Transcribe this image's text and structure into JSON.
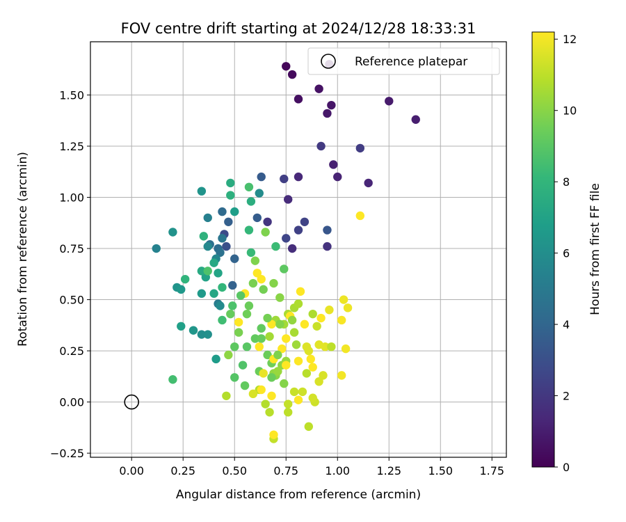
{
  "chart_data": {
    "type": "scatter",
    "title": "FOV centre drift starting at 2024/12/28 18:33:31",
    "xlabel": "Angular distance from reference (arcmin)",
    "ylabel": "Rotation from reference (arcmin)",
    "xlim": [
      -0.2,
      1.82
    ],
    "ylim": [
      -0.27,
      1.76
    ],
    "x_ticks": [
      0.0,
      0.25,
      0.5,
      0.75,
      1.0,
      1.25,
      1.5,
      1.75
    ],
    "x_tick_labels": [
      "0.00",
      "0.25",
      "0.50",
      "0.75",
      "1.00",
      "1.25",
      "1.50",
      "1.75"
    ],
    "y_ticks": [
      -0.25,
      0.0,
      0.25,
      0.5,
      0.75,
      1.0,
      1.25,
      1.5
    ],
    "y_tick_labels": [
      "−0.25",
      "0.00",
      "0.25",
      "0.50",
      "0.75",
      "1.00",
      "1.25",
      "1.50"
    ],
    "grid": true,
    "legend": {
      "position": "top-right",
      "entries": [
        "Reference platepar"
      ]
    },
    "reference_point": {
      "name": "Reference platepar",
      "x": 0.0,
      "y": 0.0
    },
    "colorbar": {
      "label": "Hours from first FF file",
      "colormap": "viridis",
      "range": [
        0,
        12.2
      ],
      "ticks": [
        0,
        2,
        4,
        6,
        8,
        10,
        12
      ],
      "tick_labels": [
        "0",
        "2",
        "4",
        "6",
        "8",
        "10",
        "12"
      ]
    },
    "colormap_stops": [
      "#440154",
      "#482878",
      "#3e4989",
      "#31688e",
      "#26828e",
      "#1f9e89",
      "#35b779",
      "#6ece58",
      "#b5de2b",
      "#fde725"
    ],
    "series": [
      {
        "points": [
          [
            0.75,
            1.64,
            0.2
          ],
          [
            0.78,
            1.6,
            0.3
          ],
          [
            0.96,
            1.65,
            0.4
          ],
          [
            0.81,
            1.48,
            0.5
          ],
          [
            0.91,
            1.53,
            0.6
          ],
          [
            0.97,
            1.45,
            0.7
          ],
          [
            0.95,
            1.41,
            0.8
          ],
          [
            1.25,
            1.47,
            0.9
          ],
          [
            1.38,
            1.38,
            1.0
          ],
          [
            0.98,
            1.16,
            1.1
          ],
          [
            1.0,
            1.1,
            1.2
          ],
          [
            1.15,
            1.07,
            1.3
          ],
          [
            0.81,
            1.1,
            1.4
          ],
          [
            0.76,
            0.99,
            1.5
          ],
          [
            0.78,
            0.75,
            1.6
          ],
          [
            0.95,
            0.76,
            1.8
          ],
          [
            0.66,
            0.88,
            1.9
          ],
          [
            0.92,
            1.25,
            2.1
          ],
          [
            1.11,
            1.24,
            2.2
          ],
          [
            0.74,
            1.09,
            2.3
          ],
          [
            0.81,
            0.84,
            2.4
          ],
          [
            0.84,
            0.88,
            2.5
          ],
          [
            0.75,
            0.8,
            2.6
          ],
          [
            0.45,
            0.82,
            2.8
          ],
          [
            0.46,
            0.76,
            3.0
          ],
          [
            0.95,
            0.84,
            3.3
          ],
          [
            0.63,
            1.1,
            3.5
          ],
          [
            0.61,
            0.9,
            3.6
          ],
          [
            0.47,
            0.88,
            3.7
          ],
          [
            0.49,
            0.57,
            3.8
          ],
          [
            0.5,
            0.7,
            3.9
          ],
          [
            0.44,
            0.93,
            4.2
          ],
          [
            0.42,
            0.75,
            4.3
          ],
          [
            0.38,
            0.77,
            4.5
          ],
          [
            0.43,
            0.73,
            4.6
          ],
          [
            0.44,
            0.8,
            4.8
          ],
          [
            0.42,
            0.48,
            5.1
          ],
          [
            0.37,
            0.9,
            5.3
          ],
          [
            0.12,
            0.75,
            5.4
          ],
          [
            0.41,
            0.7,
            5.6
          ],
          [
            0.37,
            0.76,
            5.7
          ],
          [
            0.43,
            0.47,
            5.8
          ],
          [
            0.62,
            1.02,
            5.9
          ],
          [
            0.34,
            0.33,
            6.0
          ],
          [
            0.37,
            0.33,
            6.1
          ],
          [
            0.2,
            0.83,
            6.2
          ],
          [
            0.34,
            1.03,
            6.3
          ],
          [
            0.22,
            0.56,
            6.3
          ],
          [
            0.3,
            0.35,
            6.4
          ],
          [
            0.24,
            0.55,
            6.5
          ],
          [
            0.34,
            0.53,
            6.6
          ],
          [
            0.41,
            0.21,
            6.7
          ],
          [
            0.5,
            0.93,
            6.8
          ],
          [
            0.24,
            0.37,
            6.9
          ],
          [
            0.36,
            0.61,
            7.0
          ],
          [
            0.42,
            0.63,
            7.1
          ],
          [
            0.4,
            0.53,
            7.2
          ],
          [
            0.4,
            0.68,
            7.3
          ],
          [
            0.34,
            0.64,
            7.4
          ],
          [
            0.48,
            1.07,
            7.5
          ],
          [
            0.58,
            0.98,
            7.6
          ],
          [
            0.48,
            1.01,
            7.7
          ],
          [
            0.35,
            0.81,
            7.8
          ],
          [
            0.26,
            0.6,
            7.9
          ],
          [
            0.44,
            0.56,
            8.0
          ],
          [
            0.57,
            0.84,
            8.1
          ],
          [
            0.58,
            0.73,
            8.2
          ],
          [
            0.7,
            0.76,
            8.3
          ],
          [
            0.44,
            0.4,
            8.4
          ],
          [
            0.2,
            0.11,
            8.5
          ],
          [
            0.57,
            1.05,
            8.6
          ],
          [
            0.37,
            0.64,
            8.7
          ],
          [
            0.49,
            0.47,
            8.7
          ],
          [
            0.54,
            0.18,
            8.8
          ],
          [
            0.5,
            0.12,
            8.9
          ],
          [
            0.56,
            0.27,
            9.0
          ],
          [
            0.5,
            0.27,
            9.1
          ],
          [
            0.55,
            0.08,
            9.2
          ],
          [
            0.6,
            0.31,
            9.2
          ],
          [
            0.63,
            0.31,
            9.3
          ],
          [
            0.62,
            0.15,
            9.4
          ],
          [
            0.66,
            0.23,
            9.4
          ],
          [
            0.68,
            0.19,
            9.5
          ],
          [
            0.64,
            0.55,
            9.6
          ],
          [
            0.59,
            0.58,
            9.7
          ],
          [
            0.65,
            0.83,
            9.8
          ],
          [
            0.6,
            0.69,
            9.8
          ],
          [
            0.69,
            0.58,
            9.9
          ],
          [
            0.72,
            0.51,
            10.0
          ],
          [
            0.7,
            0.13,
            10.0
          ],
          [
            0.73,
            0.18,
            10.1
          ],
          [
            0.69,
            0.14,
            10.2
          ],
          [
            0.71,
            0.15,
            10.3
          ],
          [
            0.75,
            0.2,
            10.3
          ],
          [
            0.7,
            0.4,
            10.4
          ],
          [
            0.67,
            0.32,
            10.5
          ],
          [
            0.74,
            0.38,
            10.5
          ],
          [
            0.76,
            0.43,
            10.6
          ],
          [
            0.79,
            0.46,
            10.6
          ],
          [
            0.81,
            0.48,
            10.7
          ],
          [
            0.62,
            0.06,
            10.8
          ],
          [
            0.65,
            -0.01,
            10.8
          ],
          [
            0.67,
            -0.05,
            10.9
          ],
          [
            0.76,
            -0.05,
            11.0
          ],
          [
            0.86,
            -0.12,
            11.0
          ],
          [
            0.69,
            -0.18,
            11.1
          ],
          [
            0.76,
            -0.01,
            11.1
          ],
          [
            0.79,
            0.05,
            11.2
          ],
          [
            0.83,
            0.05,
            11.3
          ],
          [
            0.89,
            0.0,
            11.3
          ],
          [
            0.88,
            0.02,
            11.4
          ],
          [
            0.91,
            0.1,
            11.5
          ],
          [
            0.93,
            0.13,
            11.5
          ],
          [
            0.85,
            0.27,
            11.6
          ],
          [
            0.86,
            0.25,
            11.6
          ],
          [
            0.91,
            0.28,
            11.7
          ],
          [
            0.94,
            0.27,
            11.7
          ],
          [
            0.96,
            0.45,
            11.8
          ],
          [
            1.03,
            0.5,
            11.9
          ],
          [
            1.05,
            0.46,
            11.9
          ],
          [
            1.04,
            0.26,
            12.0
          ],
          [
            1.02,
            0.13,
            12.0
          ],
          [
            1.02,
            0.4,
            12.1
          ],
          [
            1.11,
            0.91,
            12.2
          ],
          [
            0.84,
            0.38,
            12.2
          ],
          [
            0.92,
            0.41,
            12.2
          ],
          [
            0.88,
            0.17,
            12.2
          ],
          [
            0.82,
            0.54,
            12.2
          ],
          [
            0.55,
            0.53,
            12.2
          ],
          [
            0.52,
            0.39,
            12.2
          ],
          [
            0.61,
            0.63,
            12.2
          ],
          [
            0.63,
            0.6,
            12.2
          ],
          [
            0.68,
            0.38,
            12.2
          ],
          [
            0.69,
            0.21,
            12.2
          ],
          [
            0.75,
            0.18,
            12.2
          ],
          [
            0.81,
            0.2,
            12.2
          ],
          [
            0.87,
            0.21,
            12.2
          ],
          [
            0.77,
            0.42,
            12.2
          ],
          [
            0.73,
            0.26,
            12.2
          ],
          [
            0.75,
            0.31,
            12.2
          ],
          [
            0.62,
            0.27,
            12.2
          ],
          [
            0.63,
            0.06,
            12.2
          ],
          [
            0.68,
            0.03,
            12.2
          ],
          [
            0.69,
            -0.16,
            12.2
          ],
          [
            0.81,
            0.01,
            12.2
          ],
          [
            0.46,
            0.03,
            10.8
          ],
          [
            0.59,
            0.04,
            11.5
          ],
          [
            0.64,
            0.14,
            11.8
          ],
          [
            0.56,
            0.43,
            9.5
          ],
          [
            0.66,
            0.41,
            9.6
          ],
          [
            0.72,
            0.38,
            9.9
          ],
          [
            0.8,
            0.28,
            10.4
          ],
          [
            0.88,
            0.43,
            10.7
          ],
          [
            0.97,
            0.27,
            11.0
          ],
          [
            0.47,
            0.23,
            10.1
          ],
          [
            0.52,
            0.34,
            9.7
          ],
          [
            0.48,
            0.43,
            9.3
          ],
          [
            0.53,
            0.52,
            9.0
          ],
          [
            0.57,
            0.47,
            9.4
          ],
          [
            0.74,
            0.65,
            9.1
          ],
          [
            0.63,
            0.36,
            9.2
          ],
          [
            0.79,
            0.34,
            10.6
          ],
          [
            0.85,
            0.14,
            10.9
          ],
          [
            0.9,
            0.37,
            11.2
          ],
          [
            0.74,
            0.09,
            9.9
          ],
          [
            0.68,
            0.12,
            9.4
          ],
          [
            0.71,
            0.23,
            9.8
          ],
          [
            0.78,
            0.4,
            10.2
          ]
        ]
      }
    ]
  }
}
